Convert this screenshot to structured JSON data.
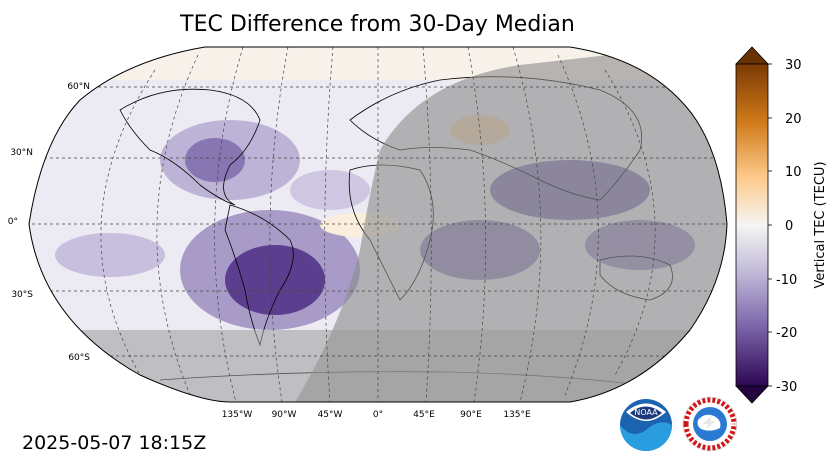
{
  "title": "TEC Difference from 30-Day Median",
  "timestamp": "2025-05-07 18:15Z",
  "map": {
    "lat_labels": [
      "60°N",
      "30°N",
      "0°",
      "30°S",
      "60°S"
    ],
    "lon_labels": [
      "135°W",
      "90°W",
      "45°W",
      "0°",
      "45°E",
      "90°E",
      "135°E"
    ]
  },
  "colorbar": {
    "label": "Vertical TEC (TECU)",
    "ticks": [
      "30",
      "20",
      "10",
      "0",
      "-10",
      "-20",
      "-30"
    ],
    "range": [
      -30,
      30
    ],
    "colors": {
      "negative_end": "#3b0a5e",
      "neutral": "#f5f5f5",
      "positive_end": "#7a3a04"
    }
  },
  "logos": {
    "noaa_text": "NOAA",
    "nws_text": "NATIONAL WEATHER SERVICE"
  },
  "colors": {
    "night_shade": "#9a9a9a",
    "ocean_base": "#ecebf3",
    "depletion": "#5b3e8e"
  }
}
